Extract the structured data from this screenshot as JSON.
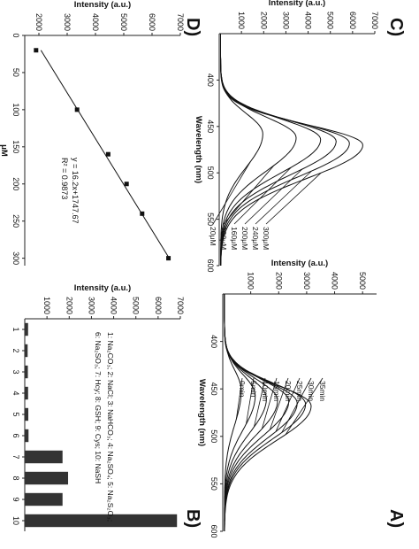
{
  "chart_data": [
    {
      "id": "A",
      "label": "A)",
      "type": "line",
      "xlabel": "Wavelength (nm)",
      "ylabel": "Intensity (a.u.)",
      "xlim": [
        350,
        600
      ],
      "ylim": [
        0,
        5500
      ],
      "xticks": [
        "400",
        "450",
        "500",
        "550",
        "600"
      ],
      "yticks": [
        "1000",
        "2000",
        "3000",
        "4000",
        "5000"
      ],
      "grid": false,
      "legend_placement": "right",
      "series": [
        {
          "name": "35min",
          "peak_x": 468,
          "peak_y": 3100
        },
        {
          "name": "30min",
          "peak_x": 466,
          "peak_y": 2900
        },
        {
          "name": "25min",
          "peak_x": 465,
          "peak_y": 2600
        },
        {
          "name": "20min",
          "peak_x": 463,
          "peak_y": 2300
        },
        {
          "name": "15min",
          "peak_x": 462,
          "peak_y": 1900
        },
        {
          "name": "10min",
          "peak_x": 460,
          "peak_y": 1500
        },
        {
          "name": "5min",
          "peak_x": 457,
          "peak_y": 1100
        },
        {
          "name": "0min",
          "peak_x": 452,
          "peak_y": 600
        }
      ]
    },
    {
      "id": "B",
      "label": "B)",
      "type": "bar",
      "xlabel": "",
      "ylabel": "Intensity (a.u.)",
      "ylim": [
        0,
        7000
      ],
      "yticks": [
        "1000",
        "2000",
        "3000",
        "4000",
        "5000",
        "6000",
        "7000"
      ],
      "categories": [
        "1",
        "2",
        "3",
        "4",
        "5",
        "6",
        "7",
        "8",
        "9",
        "10"
      ],
      "values": [
        150,
        130,
        140,
        150,
        160,
        170,
        1700,
        1950,
        1700,
        6850
      ],
      "note_line1": "1: Na₂CO₃; 2: NaCl; 3: NaHCO₃; 4: Na₂SO₄; 5: Na₂S₂O₃;",
      "note_line2": "6: Na₂SO₃; 7: Hcy; 8: GSH; 9: Cys; 10: NaSH"
    },
    {
      "id": "C",
      "label": "C)",
      "type": "line",
      "xlabel": "Wavelength (nm)",
      "ylabel": "Intensity (a.u.)",
      "xlim": [
        350,
        600
      ],
      "ylim": [
        0,
        7000
      ],
      "xticks": [
        "400",
        "450",
        "500",
        "550",
        "600"
      ],
      "yticks": [
        "1000",
        "2000",
        "3000",
        "4000",
        "5000",
        "6000",
        "7000"
      ],
      "grid": false,
      "legend_placement": "right",
      "series": [
        {
          "name": "300μM",
          "peak_x": 470,
          "peak_y": 6400
        },
        {
          "name": "240μM",
          "peak_x": 468,
          "peak_y": 5800
        },
        {
          "name": "200μM",
          "peak_x": 466,
          "peak_y": 5200
        },
        {
          "name": "160μM",
          "peak_x": 464,
          "peak_y": 4500
        },
        {
          "name": "100μM",
          "peak_x": 462,
          "peak_y": 3400
        },
        {
          "name": "20μM",
          "peak_x": 458,
          "peak_y": 1900
        }
      ]
    },
    {
      "id": "D",
      "label": "D)",
      "type": "scatter",
      "xlabel": "μM",
      "ylabel": "Intensity (a.u.)",
      "xlim": [
        0,
        310
      ],
      "ylim": [
        1500,
        7000
      ],
      "xticks": [
        "0",
        "50",
        "100",
        "150",
        "200",
        "250",
        "300"
      ],
      "yticks": [
        "2000",
        "3000",
        "4000",
        "5000",
        "6000",
        "7000"
      ],
      "x": [
        20,
        100,
        160,
        200,
        240,
        300
      ],
      "y": [
        1900,
        3350,
        4450,
        5100,
        5650,
        6580
      ],
      "fit_line": true,
      "equation": "y = 16.2x+1747.67",
      "r2": "R² = 0.9873"
    }
  ]
}
